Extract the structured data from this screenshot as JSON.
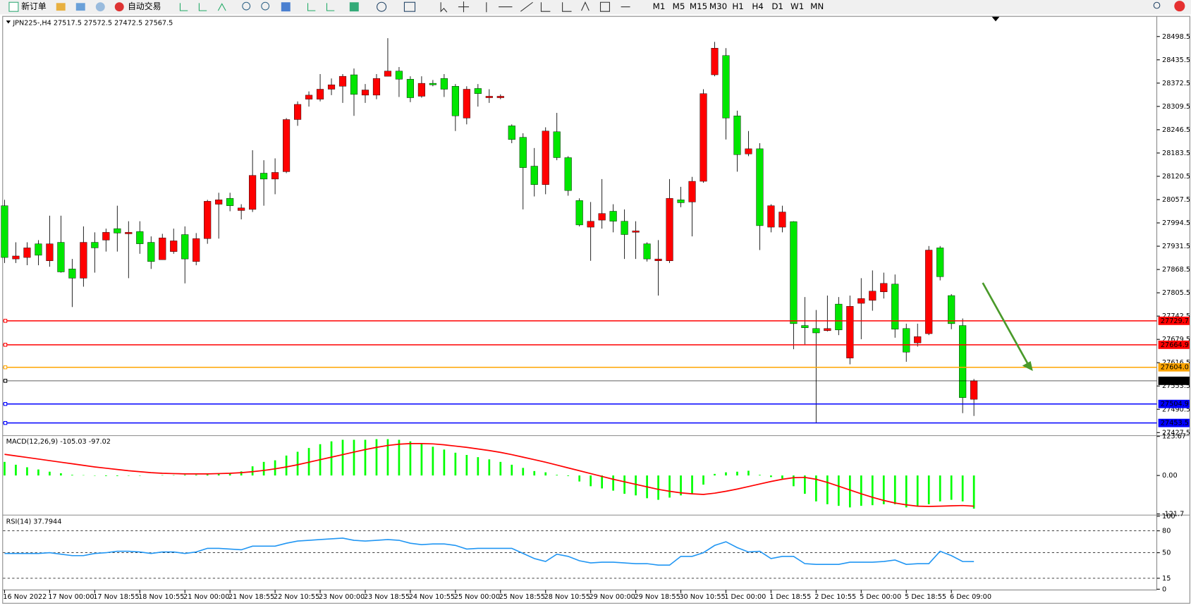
{
  "toolbar": {
    "buttons": [
      "新订单",
      "自动交易"
    ],
    "timeframes": [
      "M1",
      "M5",
      "M15",
      "M30",
      "H1",
      "H4",
      "D1",
      "W1",
      "MN"
    ]
  },
  "chart_data": [
    {
      "type": "candlestick",
      "title": "JPN225-,H4  27517.5 27572.5 27472.5 27567.5",
      "categories": [
        "16 Nov 2022",
        null,
        null,
        null,
        "17 Nov 00:00",
        null,
        null,
        null,
        "17 Nov 18:55",
        null,
        null,
        null,
        "18 Nov 10:55",
        null,
        null,
        null,
        "21 Nov 00:00",
        null,
        null,
        null,
        "21 Nov 18:55",
        null,
        null,
        null,
        "22 Nov 10:55",
        null,
        null,
        null,
        "23 Nov 00:00",
        null,
        null,
        null,
        "23 Nov 18:55",
        null,
        null,
        null,
        "24 Nov 10:55",
        null,
        null,
        null,
        "25 Nov 00:00",
        null,
        null,
        null,
        "25 Nov 18:55",
        null,
        null,
        null,
        "28 Nov 10:55",
        null,
        null,
        null,
        "29 Nov 00:00",
        null,
        null,
        null,
        "29 Nov 18:55",
        null,
        null,
        null,
        "30 Nov 10:55",
        null,
        null,
        null,
        "1 Dec 00:00",
        null,
        null,
        null,
        "1 Dec 18:55",
        null,
        null,
        null,
        "2 Dec 10:55",
        null,
        null,
        null,
        "5 Dec 00:00",
        null,
        null,
        null,
        "5 Dec 18:55",
        null,
        null,
        null,
        "6 Dec 09:00",
        null,
        null
      ],
      "open": [
        28041,
        27897,
        27901,
        27938,
        27892,
        27942,
        27870,
        27845,
        27942,
        27948,
        27979,
        27965,
        27971,
        27942,
        27895,
        27917,
        27963,
        27890,
        27952,
        28045,
        28061,
        28028,
        28031,
        28129,
        28113,
        28133,
        28274,
        28329,
        28329,
        28356,
        28364,
        28395,
        28340,
        28340,
        28391,
        28405,
        28383,
        28337,
        28372,
        28385,
        28364,
        28278,
        28358,
        28333,
        28333,
        28257,
        28226,
        28148,
        28098,
        28241,
        28171,
        28055,
        27983,
        28002,
        28026,
        27999,
        27969,
        27938,
        27892,
        27892,
        28057,
        28051,
        28107,
        28395,
        28447,
        28284,
        28181,
        28195,
        27983,
        27983,
        27998,
        27717,
        27709,
        27703,
        27775,
        27629,
        27777,
        27785,
        27808,
        27829,
        27709,
        27670,
        27695,
        27927,
        27798,
        27717,
        27517.5
      ],
      "high": [
        28057,
        27942,
        27942,
        27948,
        28014,
        28014,
        27897,
        27985,
        27969,
        27979,
        28041,
        27999,
        27999,
        27958,
        27965,
        27979,
        27985,
        27967,
        28057,
        28076,
        28076,
        28045,
        28191,
        28164,
        28169,
        28278,
        28323,
        28350,
        28397,
        28385,
        28397,
        28412,
        28370,
        28397,
        28494,
        28416,
        28391,
        28391,
        28381,
        28397,
        28370,
        28364,
        28370,
        28356,
        28342,
        28261,
        28237,
        28197,
        28253,
        28292,
        28175,
        28061,
        28051,
        28113,
        28045,
        28031,
        27999,
        27942,
        27948,
        28113,
        28092,
        28119,
        28356,
        28484,
        28467,
        28298,
        28243,
        28210,
        28045,
        28041,
        27999,
        27794,
        27759,
        27798,
        27794,
        27798,
        27845,
        27866,
        27860,
        27855,
        27722,
        27722,
        27932,
        27932,
        27802,
        27736,
        27572.5
      ],
      "low": [
        27886,
        27886,
        27880,
        27880,
        27876,
        27860,
        27767,
        27822,
        27860,
        27917,
        27917,
        27845,
        27911,
        27870,
        27895,
        27911,
        27831,
        27880,
        27938,
        27952,
        28026,
        28004,
        28024,
        28041,
        28072,
        28129,
        28257,
        28309,
        28323,
        28340,
        28319,
        28284,
        28319,
        28329,
        28391,
        28335,
        28321,
        28333,
        28364,
        28335,
        28243,
        28261,
        28309,
        28319,
        28329,
        28210,
        28031,
        28066,
        28072,
        28164,
        28068,
        27985,
        27892,
        27979,
        27969,
        27897,
        27897,
        27890,
        27798,
        27886,
        28037,
        27958,
        28103,
        28391,
        28220,
        28133,
        28175,
        27921,
        27969,
        27969,
        27653,
        27666,
        27454,
        27701,
        27691,
        27612,
        27680,
        27757,
        27790,
        27684,
        27619,
        27660,
        27691,
        27839,
        27707,
        27480,
        27472.5
      ],
      "close": [
        27901,
        27905,
        27927,
        27907,
        27938,
        27862,
        27845,
        27942,
        27927,
        27969,
        27967,
        27969,
        27938,
        27890,
        27954,
        27946,
        27897,
        27952,
        28053,
        28057,
        28041,
        28035,
        28123,
        28113,
        28131,
        28274,
        28315,
        28340,
        28356,
        28368,
        28391,
        28342,
        28354,
        28385,
        28405,
        28383,
        28333,
        28372,
        28368,
        28356,
        28284,
        28356,
        28344,
        28337,
        28337,
        28220,
        28144,
        28098,
        28243,
        28171,
        28082,
        27989,
        27999,
        28020,
        27999,
        27963,
        27973,
        27897,
        27897,
        28061,
        28049,
        28107,
        28344,
        28467,
        28278,
        28179,
        28195,
        27987,
        28041,
        28024,
        27722,
        27711,
        27697,
        27709,
        27705,
        27769,
        27790,
        27810,
        27831,
        27707,
        27645,
        27687,
        27921,
        27849,
        27722,
        27522,
        27567.5
      ],
      "up_color": "#ff0000",
      "down_color": "#00e600",
      "ylim": [
        27421.3,
        28552.0
      ],
      "yticks": [
        28498.5,
        28435.5,
        28372.5,
        28309.5,
        28246.5,
        28183.5,
        28120.5,
        28057.5,
        27994.5,
        27931.5,
        27868.5,
        27805.5,
        27742.5,
        27679.5,
        27616.5,
        27553.5,
        27490.5,
        27427.5
      ],
      "price_lines": [
        {
          "value": 27729.7,
          "color": "#ff0000"
        },
        {
          "value": 27664.9,
          "color": "#ff0000"
        },
        {
          "value": 27604,
          "label": "27604.0",
          "color": "#ffa500"
        },
        {
          "value": 27567.5,
          "color": "#000000"
        },
        {
          "value": 27504.9,
          "color": "#0000ff"
        },
        {
          "value": 27453.5,
          "color": "#0000ff"
        }
      ]
    },
    {
      "type": "macd",
      "title": "MACD(12,26,9) -105.03 -97.02",
      "histogram": {
        "color": "#00ff00",
        "values": [
          43,
          34,
          26,
          19,
          12,
          7,
          2,
          1,
          -1,
          -2,
          -2,
          -1,
          -1,
          0,
          1,
          1,
          2,
          2,
          3,
          5,
          8,
          13,
          29,
          43,
          48,
          63,
          75,
          87,
          99,
          108,
          113,
          113,
          113,
          115,
          115,
          113,
          108,
          101,
          91,
          82,
          72,
          65,
          58,
          51,
          43,
          34,
          24,
          14,
          10,
          2,
          -2,
          -19,
          -34,
          -41,
          -48,
          -58,
          -63,
          -72,
          -77,
          -70,
          -63,
          -58,
          -29,
          5,
          10,
          12,
          15,
          2,
          -5,
          -10,
          -34,
          -58,
          -82,
          -91,
          -96,
          -101,
          -96,
          -94,
          -91,
          -91,
          -101,
          -96,
          -91,
          -82,
          -77,
          -82,
          -105.03
        ]
      },
      "signal": {
        "color": "#ff0000",
        "values": [
          67,
          62,
          57,
          52,
          47,
          42,
          37,
          32,
          27,
          23,
          19,
          15,
          12,
          9,
          7,
          6,
          5,
          5,
          5,
          6,
          7,
          9,
          12,
          16,
          21,
          27,
          34,
          42,
          50,
          58,
          66,
          74,
          82,
          89,
          95,
          99,
          101,
          101,
          100,
          97,
          93,
          89,
          84,
          79,
          73,
          66,
          58,
          50,
          42,
          33,
          24,
          15,
          6,
          -3,
          -12,
          -20,
          -28,
          -36,
          -44,
          -50,
          -55,
          -58,
          -60,
          -56,
          -50,
          -43,
          -35,
          -27,
          -19,
          -12,
          -7,
          -6,
          -12,
          -22,
          -34,
          -46,
          -58,
          -69,
          -79,
          -87,
          -93,
          -97,
          -98,
          -97,
          -96,
          -95,
          -97.02
        ]
      },
      "ylim": [
        -121.7,
        123.67
      ],
      "yticks": [
        123.67,
        {
          "value": 0,
          "label": "0.00"
        },
        -121.7
      ]
    },
    {
      "type": "line",
      "title": "RSI(14) 37.7944",
      "color": "#2196f3",
      "values": [
        49,
        49,
        49,
        49,
        50,
        48,
        46,
        46,
        49,
        50,
        52,
        52,
        51,
        49,
        51,
        51,
        49,
        51,
        56,
        56,
        55,
        54,
        59,
        59,
        59,
        63,
        66,
        67,
        68,
        69,
        70,
        67,
        66,
        67,
        68,
        67,
        63,
        61,
        62,
        62,
        60,
        55,
        56,
        56,
        56,
        56,
        49,
        42,
        38,
        48,
        45,
        39,
        36,
        37,
        37,
        36,
        35,
        35,
        33,
        33,
        45,
        45,
        50,
        60,
        65,
        57,
        51,
        52,
        42,
        45,
        45,
        35,
        34,
        34,
        34,
        37,
        37,
        37,
        38,
        40,
        34,
        35,
        35,
        52,
        46,
        38,
        37.7944
      ],
      "ylim": [
        0,
        100
      ],
      "yticks": [
        100,
        80,
        50,
        15,
        0
      ]
    }
  ]
}
